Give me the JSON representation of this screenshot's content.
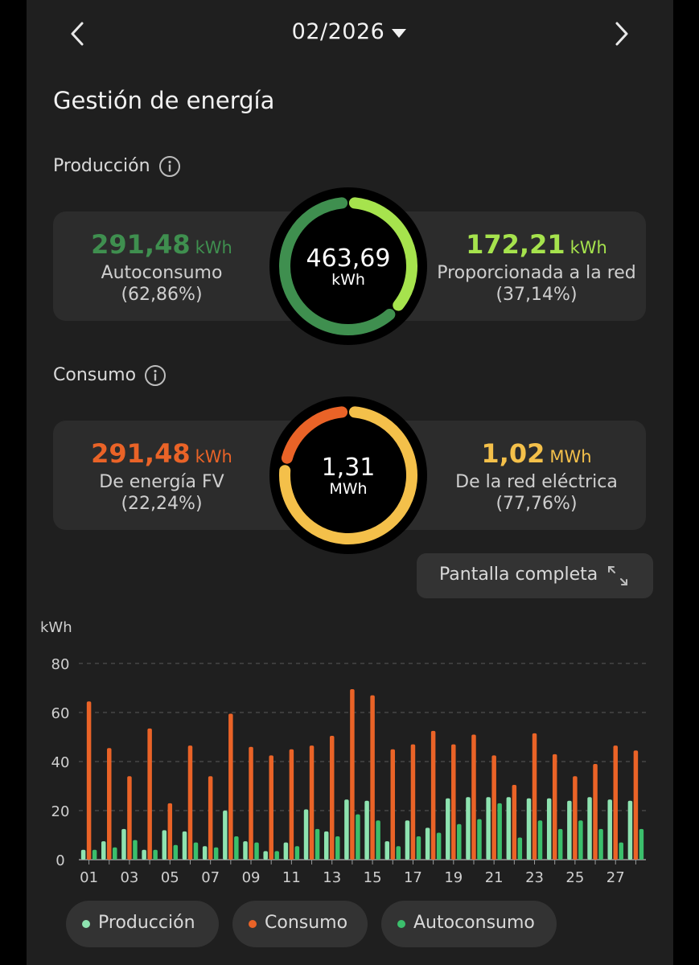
{
  "header": {
    "month_label": "02/2026",
    "prev_icon": "chevron-left-icon",
    "next_icon": "chevron-right-icon",
    "dropdown_icon": "caret-down-icon"
  },
  "page_title": "Gestión de energía",
  "production": {
    "label": "Producción",
    "total_value": "463,69",
    "total_unit": "kWh",
    "left": {
      "value": "291,48",
      "unit": "kWh",
      "label": "Autoconsumo",
      "percent": "(62,86%)"
    },
    "right": {
      "value": "172,21",
      "unit": "kWh",
      "label": "Proporcionada a la red",
      "percent": "(37,14%)"
    },
    "share_self": 0.6286
  },
  "consumption": {
    "label": "Consumo",
    "total_value": "1,31",
    "total_unit": "MWh",
    "left": {
      "value": "291,48",
      "unit": "kWh",
      "label": "De energía FV",
      "percent": "(22,24%)"
    },
    "right": {
      "value": "1,02",
      "unit": "MWh",
      "label": "De la red eléctrica",
      "percent": "(77,76%)"
    },
    "share_pv": 0.2224
  },
  "fullscreen_label": "Pantalla completa",
  "colors": {
    "autoconsumo_dark": "#3f8f4f",
    "red_light_green": "#a6e34d",
    "consumo_orange": "#ea6327",
    "grid_yellow": "#f4c04a",
    "produccion_bar": "#8ee3b0",
    "autoconsumo_bar": "#3bbf6c"
  },
  "chart_data": {
    "type": "bar",
    "ylabel": "kWh",
    "ylim": [
      0,
      80
    ],
    "yticks": [
      0,
      20,
      40,
      60,
      80
    ],
    "grid": true,
    "x": [
      1,
      2,
      3,
      4,
      5,
      6,
      7,
      8,
      9,
      10,
      11,
      12,
      13,
      14,
      15,
      16,
      17,
      18,
      19,
      20,
      21,
      22,
      23,
      24,
      25,
      26,
      27,
      28
    ],
    "xtick_labels": [
      "01",
      "03",
      "05",
      "07",
      "09",
      "11",
      "13",
      "15",
      "17",
      "19",
      "21",
      "23",
      "25",
      "27"
    ],
    "series": [
      {
        "name": "Producción",
        "color": "#8ee3b0",
        "values": [
          4,
          7.5,
          12.5,
          4,
          12,
          11.5,
          5.5,
          20,
          7.5,
          3.5,
          7,
          20.5,
          11.5,
          24.5,
          24,
          7.5,
          16,
          13,
          25,
          25.5,
          25.5,
          25.5,
          25,
          25,
          24,
          25.5,
          24.5,
          24
        ]
      },
      {
        "name": "Consumo",
        "color": "#ea6327",
        "values": [
          64.5,
          45.5,
          34,
          53.5,
          23,
          46.5,
          34,
          59.5,
          46,
          42.5,
          45,
          46.5,
          50.5,
          69.5,
          67,
          45,
          47,
          52.5,
          47,
          51,
          42.5,
          30.5,
          51.5,
          43,
          34,
          39,
          46.5,
          44.5
        ]
      },
      {
        "name": "Autoconsumo",
        "color": "#3bbf6c",
        "values": [
          4,
          5,
          8,
          4,
          6,
          7,
          5,
          9.5,
          7,
          3.5,
          5.5,
          12.5,
          9.5,
          18.5,
          16,
          5.5,
          9.5,
          11,
          14.5,
          16.5,
          23,
          9,
          16,
          12.5,
          16,
          12.5,
          7,
          12.5
        ]
      }
    ]
  }
}
